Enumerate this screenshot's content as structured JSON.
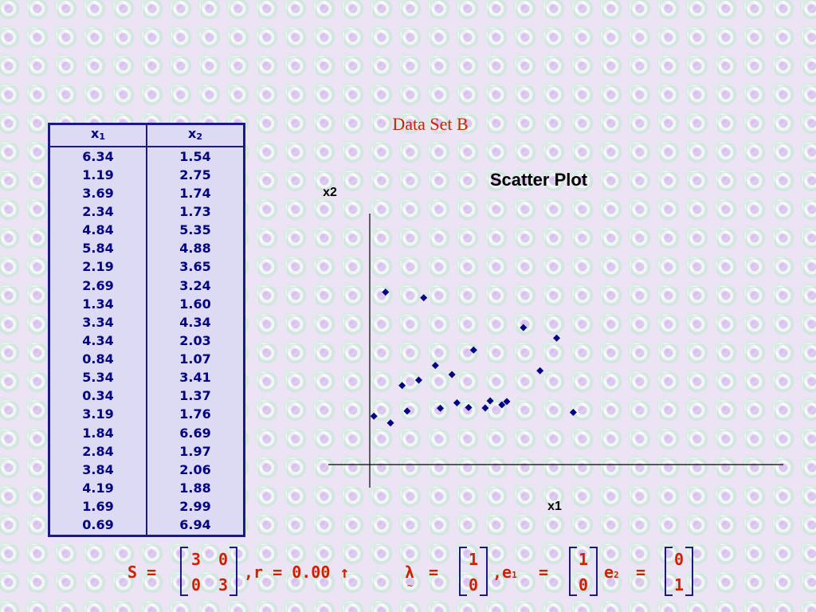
{
  "dataset_title": "Data Set B",
  "table": {
    "headers": [
      {
        "base": "x",
        "sub": "1"
      },
      {
        "base": "x",
        "sub": "2"
      }
    ],
    "rows": [
      [
        "6.34",
        "1.54"
      ],
      [
        "1.19",
        "2.75"
      ],
      [
        "3.69",
        "1.74"
      ],
      [
        "2.34",
        "1.73"
      ],
      [
        "4.84",
        "5.35"
      ],
      [
        "5.84",
        "4.88"
      ],
      [
        "2.19",
        "3.65"
      ],
      [
        "2.69",
        "3.24"
      ],
      [
        "1.34",
        "1.60"
      ],
      [
        "3.34",
        "4.34"
      ],
      [
        "4.34",
        "2.03"
      ],
      [
        "0.84",
        "1.07"
      ],
      [
        "5.34",
        "3.41"
      ],
      [
        "0.34",
        "1.37"
      ],
      [
        "3.19",
        "1.76"
      ],
      [
        "1.84",
        "6.69"
      ],
      [
        "2.84",
        "1.97"
      ],
      [
        "3.84",
        "2.06"
      ],
      [
        "4.19",
        "1.88"
      ],
      [
        "1.69",
        "2.99"
      ],
      [
        "0.69",
        "6.94"
      ]
    ]
  },
  "chart_data": {
    "type": "scatter",
    "title": "Scatter Plot",
    "xlabel": "x1",
    "ylabel": "x2",
    "x": [
      6.34,
      1.19,
      3.69,
      2.34,
      4.84,
      5.84,
      2.19,
      2.69,
      1.34,
      3.34,
      4.34,
      0.84,
      5.34,
      0.34,
      3.19,
      1.84,
      2.84,
      3.84,
      4.19,
      1.69,
      0.69
    ],
    "y": [
      1.54,
      2.75,
      1.74,
      1.73,
      5.35,
      4.88,
      3.65,
      3.24,
      1.6,
      4.34,
      2.03,
      1.07,
      3.41,
      1.37,
      1.76,
      6.69,
      1.97,
      2.06,
      1.88,
      2.99,
      6.94
    ],
    "marker": "diamond",
    "marker_color": "#000080",
    "grid": false
  },
  "formula": {
    "s_label": "S =",
    "matrix_s": [
      [
        "3",
        "0"
      ],
      [
        "0",
        "3"
      ]
    ],
    "r_text": ",r = 0.00 ↑",
    "lambda_symbol": "λ",
    "lambda_tilde": "~",
    "equals": "=",
    "lambda_vec": [
      "1",
      "0"
    ],
    "comma": ",",
    "e_symbol": "e",
    "e1_sub": "1",
    "e1_vec": [
      "1",
      "0"
    ],
    "e2_sub": "2",
    "e2_vec": [
      "0",
      "1"
    ]
  },
  "colors": {
    "accent": "#cc2200",
    "table_text": "#000080",
    "table_border": "#1a1a80",
    "table_bg": "#dcdaf4"
  }
}
